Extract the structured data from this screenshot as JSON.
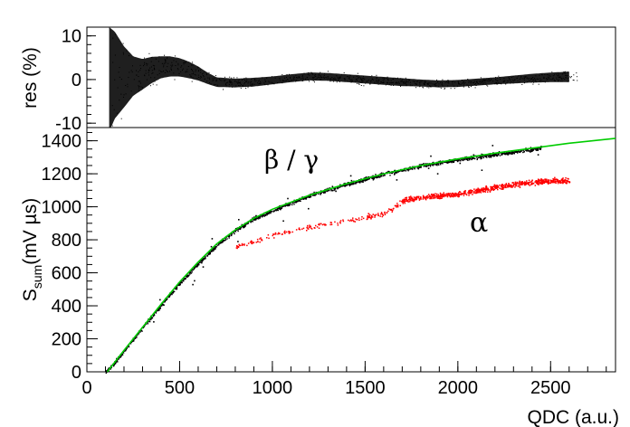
{
  "chart_data": [
    {
      "id": "residual",
      "type": "scatter",
      "ylabel": "res (%)",
      "ylim": [
        -11,
        12
      ],
      "yticks": [
        -10,
        0,
        10
      ],
      "xlim": [
        0,
        2850
      ],
      "band": {
        "color": "#000000",
        "x": [
          120,
          150,
          200,
          250,
          300,
          350,
          400,
          450,
          500,
          550,
          600,
          650,
          700,
          800,
          900,
          1000,
          1100,
          1200,
          1300,
          1400,
          1500,
          1600,
          1700,
          1800,
          1900,
          2000,
          2100,
          2200,
          2300,
          2400,
          2500,
          2600
        ],
        "center": [
          0,
          1.0,
          0.6,
          0.8,
          1.2,
          2.2,
          2.8,
          3.0,
          2.8,
          2.2,
          1.4,
          0.3,
          -0.6,
          -0.8,
          -0.6,
          -0.2,
          0.3,
          0.7,
          0.6,
          0.3,
          0.0,
          -0.3,
          -0.6,
          -0.8,
          -1.0,
          -0.9,
          -0.6,
          -0.3,
          0.0,
          0.3,
          0.5,
          0.6
        ],
        "halfwidth": [
          12,
          10,
          7,
          4.5,
          3.5,
          3.0,
          2.5,
          2.3,
          2.1,
          1.9,
          1.6,
          1.3,
          1.1,
          1.0,
          1.0,
          0.9,
          0.9,
          0.9,
          0.9,
          0.9,
          0.9,
          0.9,
          0.9,
          0.8,
          0.8,
          0.8,
          0.8,
          0.8,
          0.9,
          1.0,
          1.1,
          1.2
        ]
      }
    },
    {
      "id": "main",
      "type": "scatter",
      "title": "",
      "xlabel": "QDC (a.u.)",
      "ylabel_main": "S",
      "ylabel_sub": "sum",
      "ylabel_unit": "(mV µs)",
      "xlim": [
        0,
        2850
      ],
      "ylim": [
        0,
        1480
      ],
      "xticks": [
        0,
        500,
        1000,
        1500,
        2000,
        2500
      ],
      "yticks": [
        0,
        200,
        400,
        600,
        800,
        1000,
        1200,
        1400
      ],
      "series": [
        {
          "name": "β / γ",
          "color": "#000000",
          "x": [
            100,
            150,
            200,
            300,
            400,
            500,
            600,
            700,
            800,
            900,
            1000,
            1200,
            1400,
            1600,
            1800,
            2000,
            2200,
            2400,
            2450
          ],
          "y": [
            0,
            60,
            130,
            270,
            410,
            540,
            660,
            770,
            860,
            930,
            980,
            1070,
            1140,
            1200,
            1250,
            1290,
            1320,
            1350,
            1360
          ]
        },
        {
          "name": "α",
          "color": "#ff0000",
          "x": [
            800,
            1000,
            1200,
            1400,
            1600,
            1700,
            1800,
            1900,
            2000,
            2100,
            2200,
            2300,
            2400,
            2500,
            2600
          ],
          "y": [
            760,
            830,
            880,
            920,
            960,
            1040,
            1060,
            1070,
            1080,
            1100,
            1120,
            1140,
            1150,
            1160,
            1160
          ]
        },
        {
          "name": "fit",
          "color": "#00cc00",
          "x": [
            110,
            200,
            300,
            400,
            500,
            600,
            700,
            800,
            900,
            1000,
            1200,
            1400,
            1600,
            1800,
            2000,
            2200,
            2400,
            2600,
            2850
          ],
          "y": [
            0,
            130,
            270,
            410,
            545,
            665,
            775,
            860,
            930,
            985,
            1070,
            1140,
            1200,
            1250,
            1290,
            1325,
            1355,
            1385,
            1415
          ]
        }
      ],
      "annotations": [
        {
          "text": "β / γ",
          "color": "#000000"
        },
        {
          "text": "α",
          "color": "#ff0000"
        }
      ]
    }
  ]
}
